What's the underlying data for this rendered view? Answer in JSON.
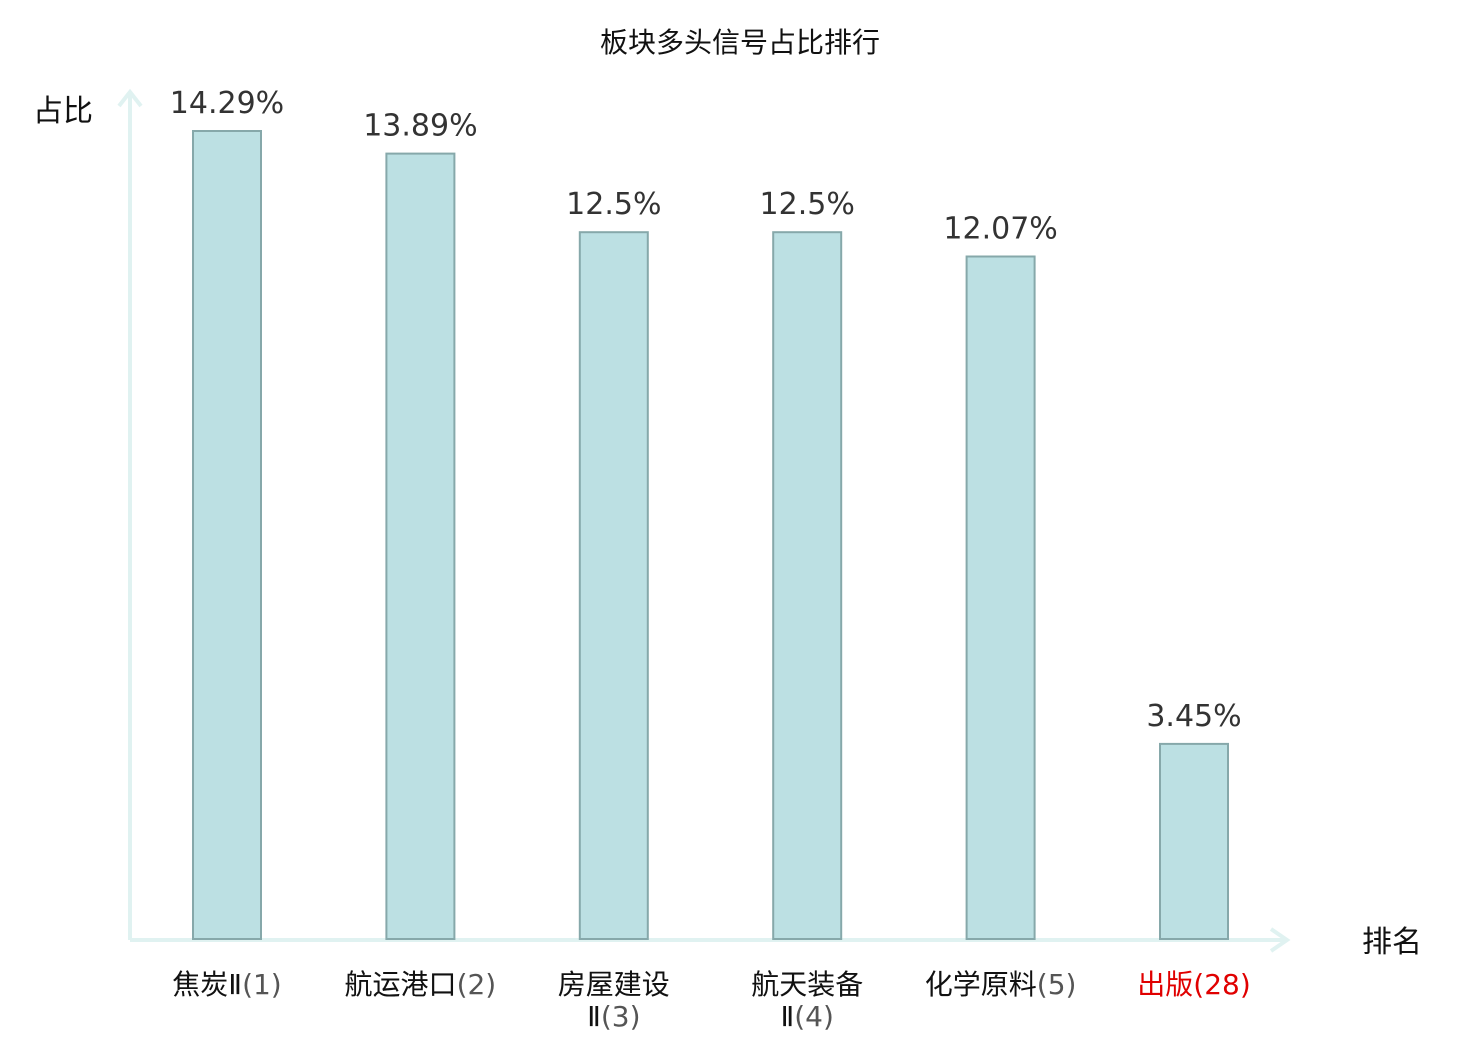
{
  "chart_data": {
    "type": "bar",
    "title": "板块多头信号占比排行",
    "ylabel": "占比",
    "xlabel": "排名",
    "ylim": [
      0,
      15
    ],
    "grid": false,
    "categories": [
      {
        "name": "焦炭Ⅱ",
        "rank": "(1)",
        "label": "14.29%",
        "value": 14.29,
        "highlight": false
      },
      {
        "name": "航运港口",
        "rank": "(2)",
        "label": "13.89%",
        "value": 13.89,
        "highlight": false
      },
      {
        "name": "房屋建设",
        "name2": "Ⅱ",
        "rank": "(3)",
        "label": "12.5%",
        "value": 12.5,
        "highlight": false
      },
      {
        "name": "航天装备",
        "name2": "Ⅱ",
        "rank": "(4)",
        "label": "12.5%",
        "value": 12.5,
        "highlight": false
      },
      {
        "name": "化学原料",
        "rank": "(5)",
        "label": "12.07%",
        "value": 12.07,
        "highlight": false
      },
      {
        "name": "出版",
        "rank": "(28)",
        "label": "3.45%",
        "value": 3.45,
        "highlight": true
      }
    ],
    "colors": {
      "bar_fill": "#bce0e3",
      "bar_stroke": "#86a8aa",
      "axis": "#e0f2f1",
      "highlight": "#e00000"
    }
  }
}
